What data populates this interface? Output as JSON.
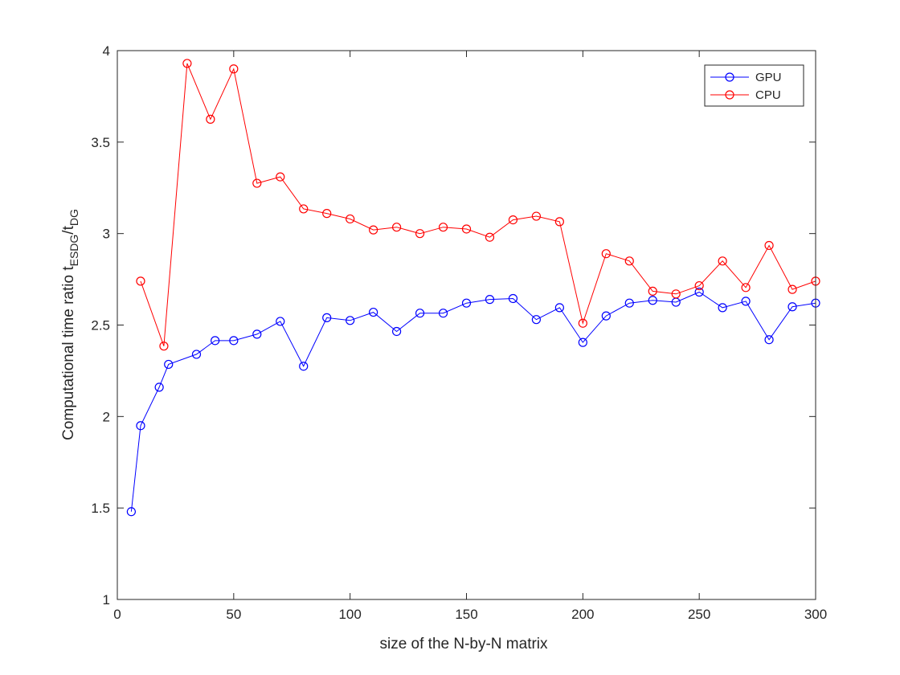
{
  "chart_data": {
    "type": "line",
    "title": "",
    "xlabel": "size of the N-by-N matrix",
    "ylabel": {
      "prefix": "Computational time ratio t",
      "sub1": "ESDG",
      "middle": "/t",
      "sub2": "DG"
    },
    "xlim": [
      0,
      300
    ],
    "ylim": [
      1,
      4
    ],
    "x_ticks": [
      0,
      50,
      100,
      150,
      200,
      250,
      300
    ],
    "x_tick_labels": [
      "0",
      "50",
      "100",
      "150",
      "200",
      "250",
      "300"
    ],
    "y_ticks": [
      1,
      1.5,
      2,
      2.5,
      3,
      3.5,
      4
    ],
    "y_tick_labels": [
      "1",
      "1.5",
      "2",
      "2.5",
      "3",
      "3.5",
      "4"
    ],
    "grid": false,
    "legend_position": "top-right",
    "series": [
      {
        "name": "GPU",
        "color": "#0000ff",
        "marker": "circle",
        "x": [
          6,
          10,
          18,
          22,
          34,
          42,
          50,
          60,
          70,
          80,
          90,
          100,
          110,
          120,
          130,
          140,
          150,
          160,
          170,
          180,
          190,
          200,
          210,
          220,
          230,
          240,
          250,
          260,
          270,
          280,
          290,
          300
        ],
        "y": [
          1.48,
          1.95,
          2.16,
          2.285,
          2.34,
          2.415,
          2.415,
          2.45,
          2.52,
          2.275,
          2.54,
          2.525,
          2.57,
          2.465,
          2.565,
          2.565,
          2.62,
          2.64,
          2.645,
          2.53,
          2.595,
          2.405,
          2.55,
          2.62,
          2.635,
          2.625,
          2.68,
          2.595,
          2.63,
          2.42,
          2.6,
          2.62
        ]
      },
      {
        "name": "CPU",
        "color": "#ff0000",
        "marker": "circle",
        "x": [
          10,
          20,
          30,
          40,
          50,
          60,
          70,
          80,
          90,
          100,
          110,
          120,
          130,
          140,
          150,
          160,
          170,
          180,
          190,
          200,
          210,
          220,
          230,
          240,
          250,
          260,
          270,
          280,
          290,
          300
        ],
        "y": [
          2.74,
          2.385,
          3.93,
          3.625,
          3.9,
          3.275,
          3.31,
          3.135,
          3.11,
          3.08,
          3.02,
          3.035,
          3.0,
          3.035,
          3.025,
          2.98,
          3.075,
          3.095,
          3.065,
          2.51,
          2.89,
          2.85,
          2.685,
          2.67,
          2.715,
          2.85,
          2.705,
          2.935,
          2.695,
          2.74
        ]
      }
    ]
  }
}
